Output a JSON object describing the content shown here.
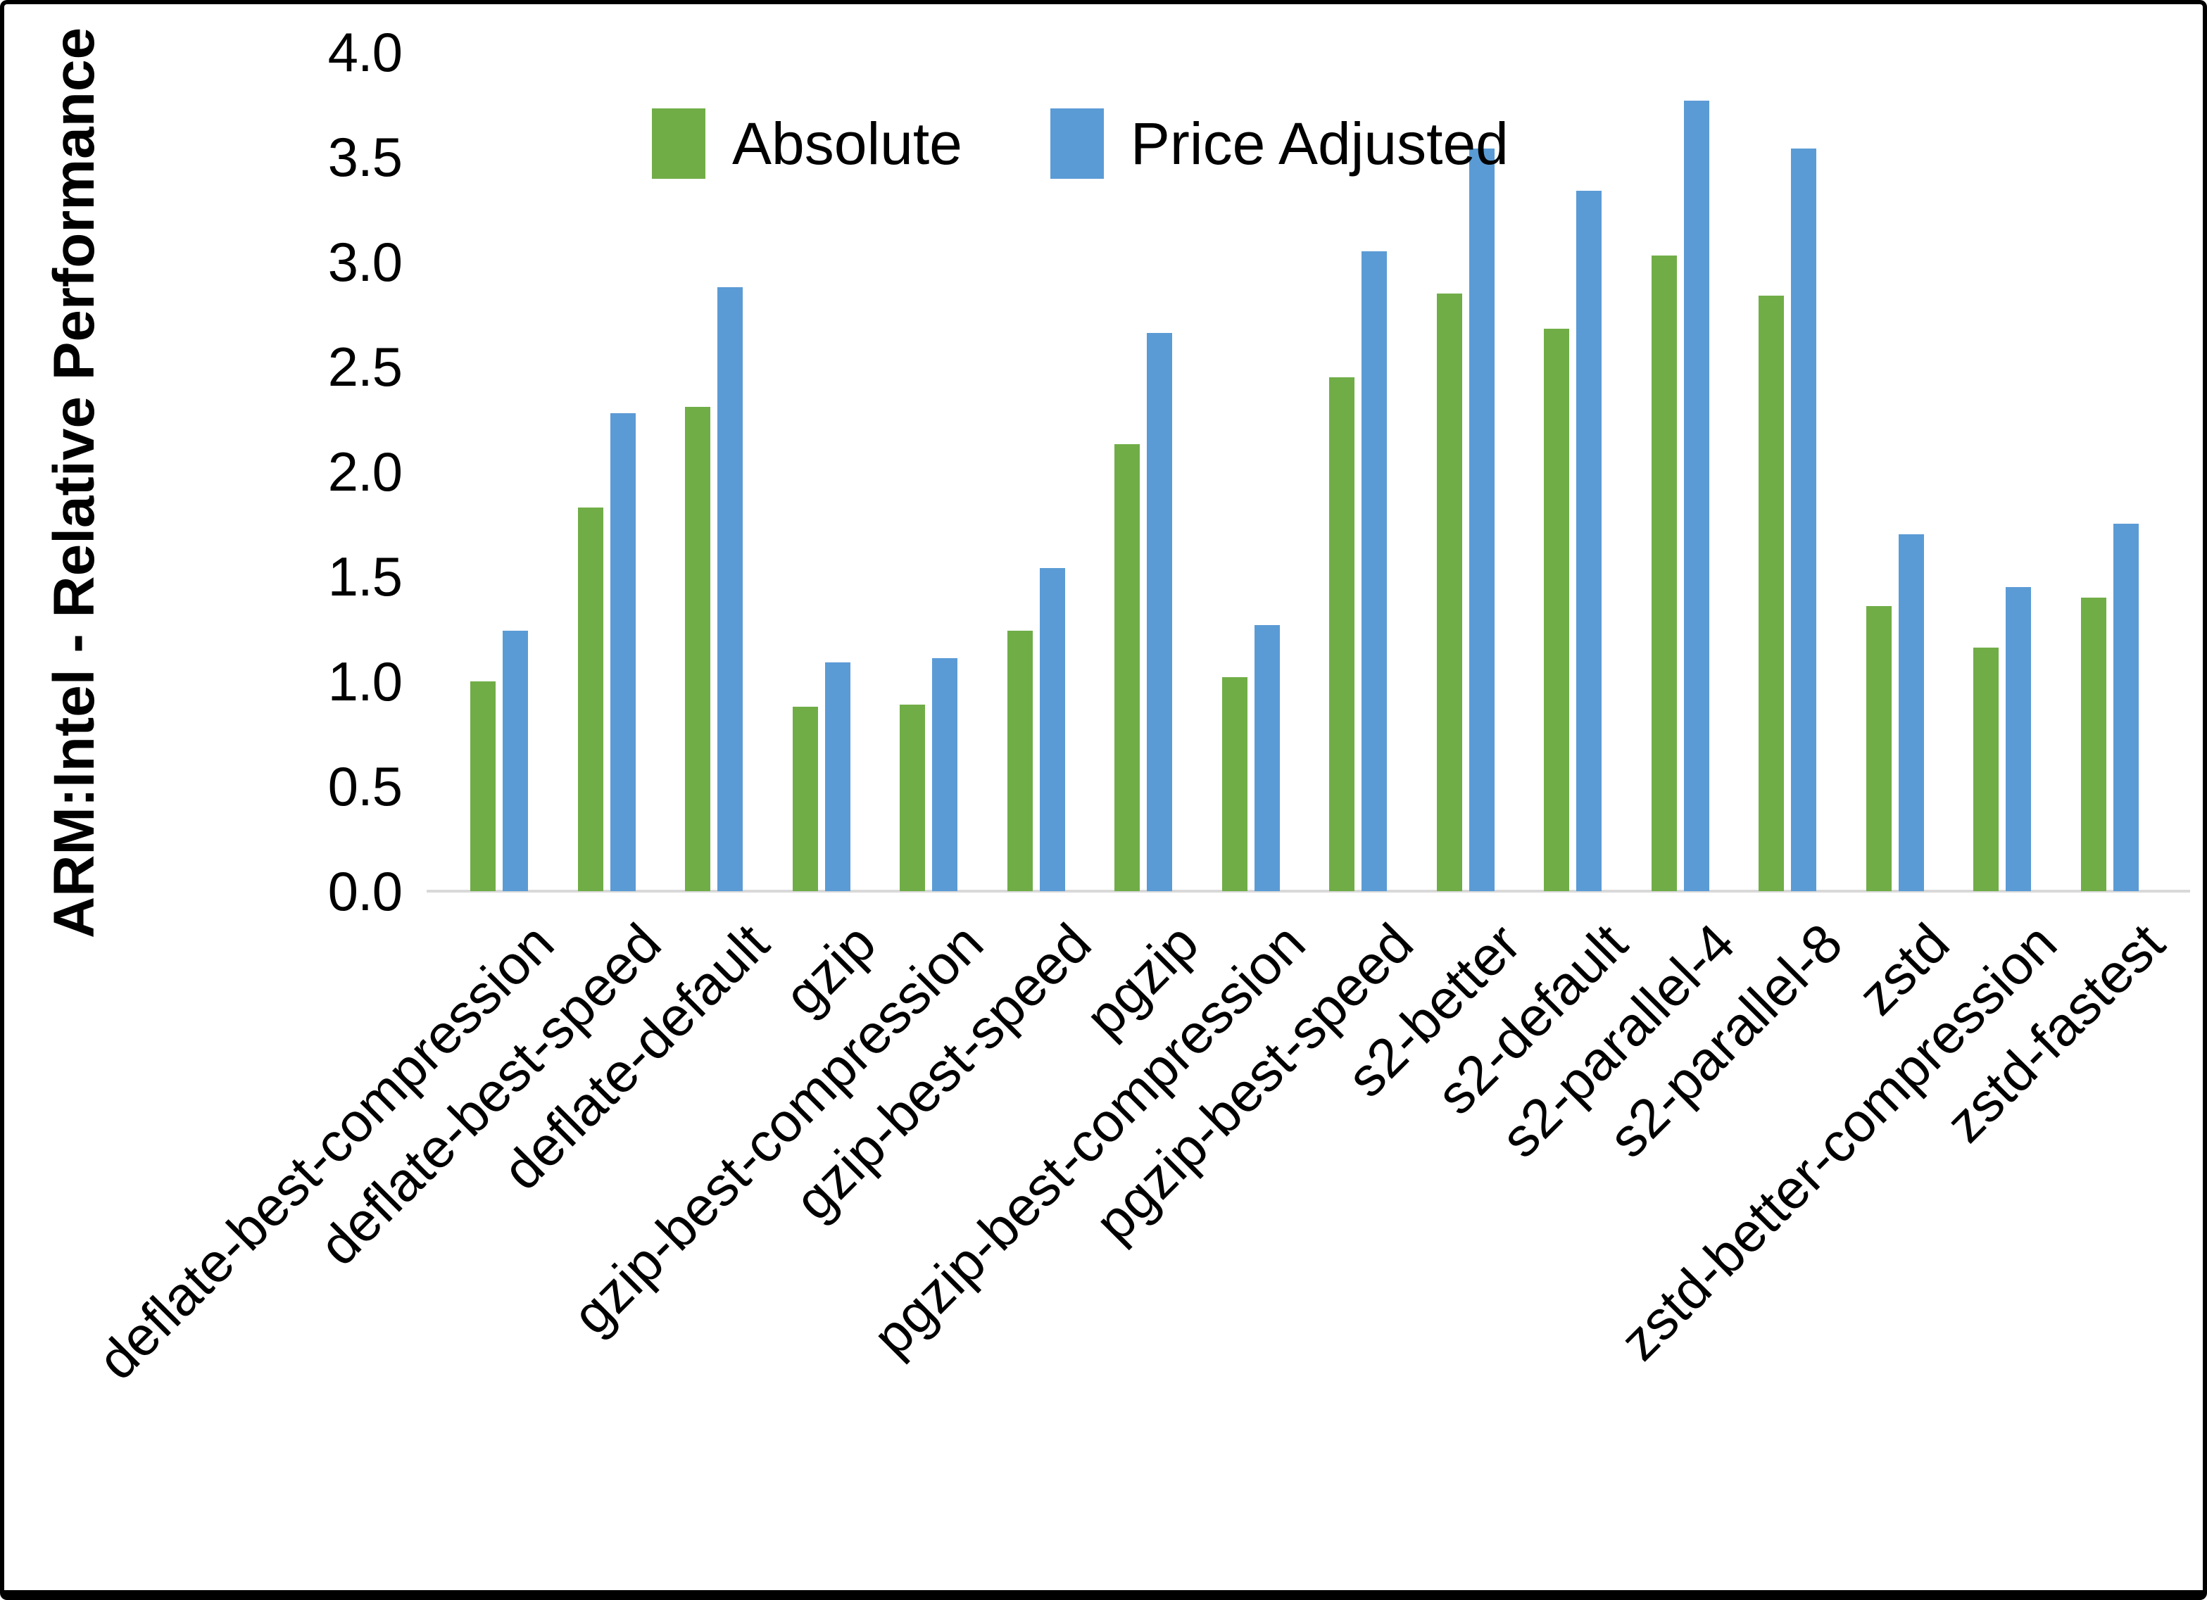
{
  "chart_data": {
    "type": "bar",
    "title": "",
    "xlabel": "",
    "ylabel": "ARM:Intel - Relative Performance",
    "ylim": [
      0.0,
      4.0
    ],
    "ytick_step": 0.5,
    "ytick_labels": [
      "0.0",
      "0.5",
      "1.0",
      "1.5",
      "2.0",
      "2.5",
      "3.0",
      "3.5",
      "4.0"
    ],
    "grid": false,
    "legend_position": "top-center",
    "categories": [
      "deflate-best-compression",
      "deflate-best-speed",
      "deflate-default",
      "gzip",
      "gzip-best-compression",
      "gzip-best-speed",
      "pgzip",
      "pgzip-best-compression",
      "pgzip-best-speed",
      "s2-better",
      "s2-default",
      "s2-parallel-4",
      "s2-parallel-8",
      "zstd",
      "zstd-better-compression",
      "zstd-fastest"
    ],
    "series": [
      {
        "name": "Absolute",
        "color": "#70AD47",
        "values": [
          1.0,
          1.83,
          2.31,
          0.88,
          0.89,
          1.24,
          2.13,
          1.02,
          2.45,
          2.85,
          2.68,
          3.03,
          2.84,
          1.36,
          1.16,
          1.4
        ]
      },
      {
        "name": "Price Adjusted",
        "color": "#5B9BD5",
        "values": [
          1.24,
          2.28,
          2.88,
          1.09,
          1.11,
          1.54,
          2.66,
          1.27,
          3.05,
          3.54,
          3.34,
          3.77,
          3.54,
          1.7,
          1.45,
          1.75
        ]
      }
    ]
  }
}
